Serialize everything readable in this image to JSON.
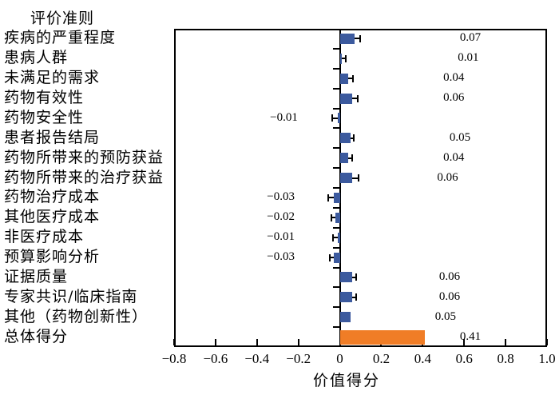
{
  "figure": {
    "title": "评价准则",
    "xlabel": "价值得分"
  },
  "chart_data": {
    "type": "bar",
    "orientation": "horizontal",
    "title": "评价准则",
    "xlabel": "价值得分",
    "grid": false,
    "legend": "none",
    "xlim": [
      -0.8,
      1.0
    ],
    "x_ticks": [
      -0.8,
      -0.6,
      -0.4,
      -0.2,
      0,
      0.2,
      0.4,
      0.6,
      0.8,
      1.0
    ],
    "x_tick_labels": [
      "−0.8",
      "−0.6",
      "−0.4",
      "−0.2",
      "0",
      "0.2",
      "0.4",
      "0.6",
      "0.8",
      "1.0"
    ],
    "categories": [
      "疾病的严重程度",
      "患病人群",
      "未满足的需求",
      "药物有效性",
      "药物安全性",
      "患者报告结局",
      "药物所带来的预防获益",
      "药物所带来的治疗获益",
      "药物治疗成本",
      "其他医疗成本",
      "非医疗成本",
      "预算影响分析",
      "证据质量",
      "专家共识/临床指南",
      "其他（药物创新性）",
      "总体得分"
    ],
    "values": [
      0.07,
      0.01,
      0.04,
      0.06,
      -0.01,
      0.05,
      0.04,
      0.06,
      -0.03,
      -0.02,
      -0.01,
      -0.03,
      0.06,
      0.06,
      0.05,
      0.41
    ],
    "errors": [
      0.027,
      0.017,
      0.022,
      0.025,
      0.025,
      0.016,
      0.018,
      0.032,
      0.025,
      0.022,
      0.022,
      0.02,
      0.018,
      0.018,
      0,
      0
    ],
    "value_labels": [
      "0.07",
      "0.01",
      "0.04",
      "0.06",
      "−0.01",
      "0.05",
      "0.04",
      "0.06",
      "−0.03",
      "−0.02",
      "−0.01",
      "−0.03",
      "0.06",
      "0.06",
      "0.05",
      "0.41"
    ],
    "label_x": [
      0.63,
      0.62,
      0.55,
      0.55,
      -0.27,
      0.58,
      0.55,
      0.52,
      -0.285,
      -0.285,
      -0.285,
      -0.285,
      0.53,
      0.53,
      0.51,
      0.63
    ],
    "colors": {
      "bar_default": "#3C5A9E",
      "bar_total": "#F07D26",
      "axis": "#000000"
    },
    "total_index": 15
  }
}
